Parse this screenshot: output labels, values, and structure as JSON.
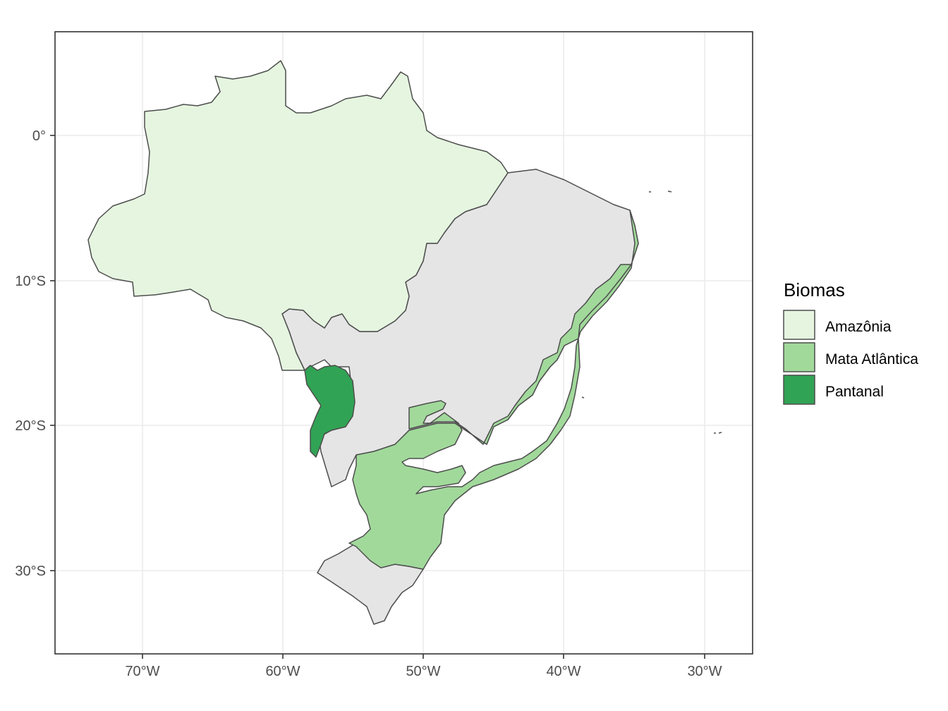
{
  "legend": {
    "title": "Biomas",
    "items": [
      {
        "label": "Amazônia",
        "color": "#e5f5e0"
      },
      {
        "label": "Mata Atlântica",
        "color": "#a1d99b"
      },
      {
        "label": "Pantanal",
        "color": "#31a354"
      }
    ]
  },
  "colors": {
    "other_biomes": "#e5e5e5",
    "border": "#4d4d4d",
    "grid": "#ebebeb",
    "panel_border": "#333333"
  },
  "axes": {
    "x_ticks": [
      "70°W",
      "60°W",
      "50°W",
      "40°W",
      "30°W"
    ],
    "y_ticks": [
      "0°",
      "10°S",
      "20°S",
      "30°S"
    ]
  }
}
